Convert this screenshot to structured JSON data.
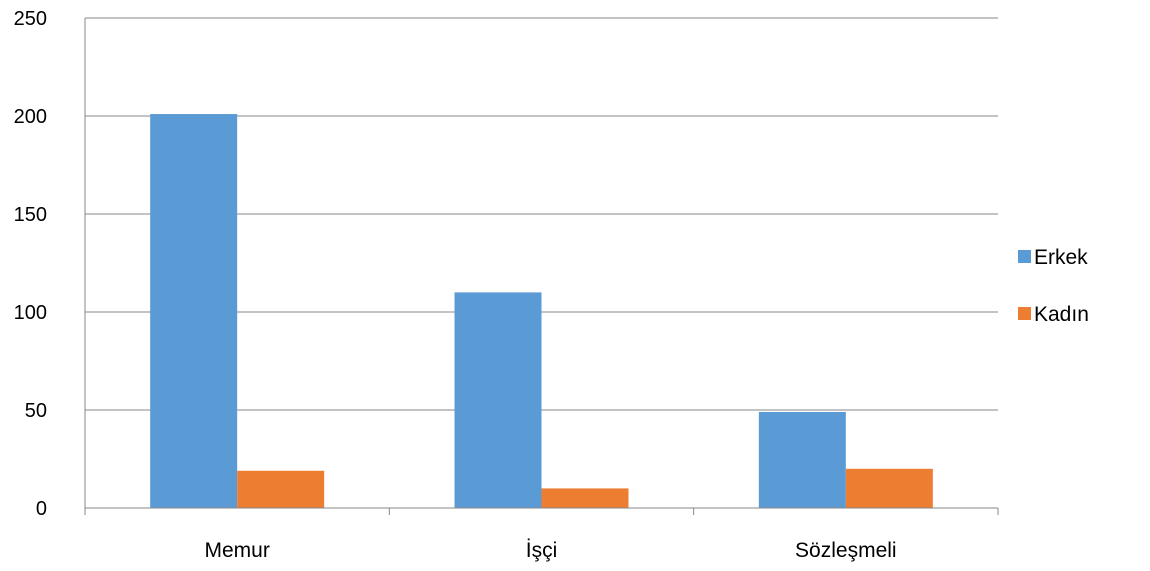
{
  "chart_data": {
    "type": "bar",
    "categories": [
      "Memur",
      "İşçi",
      "Sözleşmeli"
    ],
    "series": [
      {
        "name": "Erkek",
        "values": [
          201,
          110,
          49
        ],
        "color": "#5B9BD5"
      },
      {
        "name": "Kadın",
        "values": [
          19,
          10,
          20
        ],
        "color": "#ED7D31"
      }
    ],
    "ylim": [
      0,
      250
    ],
    "yticks": [
      0,
      50,
      100,
      150,
      200,
      250
    ],
    "grid": true,
    "legend": "right",
    "title": "",
    "xlabel": "",
    "ylabel": ""
  }
}
